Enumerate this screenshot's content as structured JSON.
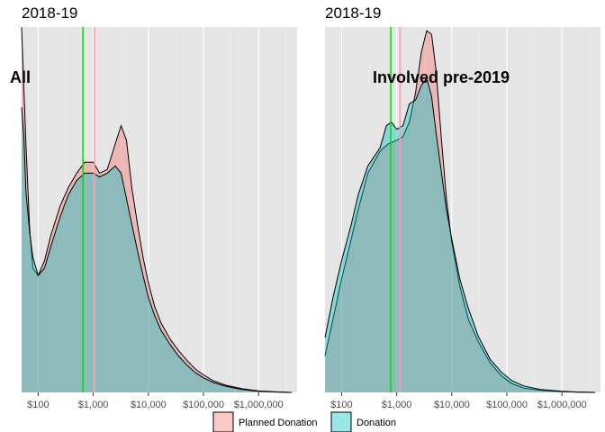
{
  "chart_data": [
    {
      "type": "area",
      "title": "2018-19",
      "annotation": "All",
      "xscale": "log10",
      "xlim": [
        50,
        5000000
      ],
      "ylim": [
        0,
        1
      ],
      "x_ticks": [
        100,
        1000,
        10000,
        100000,
        1000000
      ],
      "x_tick_labels": [
        "$100",
        "$1,000",
        "$10,000",
        "$100,000",
        "$1,000,000"
      ],
      "vlines": [
        {
          "series": "Donation",
          "x": 650,
          "color": "#00e000"
        },
        {
          "series": "Planned Donation",
          "x": 1050,
          "color": "#ff9db0"
        }
      ],
      "series": [
        {
          "name": "Planned Donation",
          "color": "#f8766d",
          "x": [
            50,
            60,
            70,
            80,
            100,
            130,
            170,
            250,
            350,
            500,
            700,
            1000,
            1300,
            1800,
            2500,
            3200,
            4000,
            5000,
            6500,
            8000,
            10000,
            13000,
            17000,
            25000,
            35000,
            50000,
            70000,
            100000,
            150000,
            250000,
            500000,
            1000000,
            2000000,
            4000000
          ],
          "y": [
            1.0,
            0.68,
            0.45,
            0.34,
            0.32,
            0.36,
            0.43,
            0.51,
            0.56,
            0.6,
            0.63,
            0.63,
            0.6,
            0.61,
            0.68,
            0.73,
            0.69,
            0.56,
            0.45,
            0.37,
            0.3,
            0.235,
            0.19,
            0.145,
            0.115,
            0.088,
            0.065,
            0.048,
            0.032,
            0.02,
            0.01,
            0.004,
            0.0015,
            0.0
          ]
        },
        {
          "name": "Donation",
          "color": "#00bfc4",
          "x": [
            50,
            55,
            60,
            70,
            80,
            100,
            130,
            170,
            250,
            350,
            500,
            700,
            1000,
            1300,
            1800,
            2500,
            3200,
            4000,
            5000,
            6500,
            8000,
            10000,
            13000,
            17000,
            25000,
            35000,
            50000,
            70000,
            100000,
            150000,
            250000,
            500000,
            1000000,
            2000000,
            4000000
          ],
          "y": [
            0.78,
            0.7,
            0.55,
            0.44,
            0.37,
            0.32,
            0.34,
            0.4,
            0.48,
            0.54,
            0.58,
            0.6,
            0.6,
            0.59,
            0.6,
            0.62,
            0.6,
            0.53,
            0.46,
            0.38,
            0.32,
            0.26,
            0.21,
            0.17,
            0.13,
            0.1,
            0.075,
            0.055,
            0.04,
            0.027,
            0.017,
            0.008,
            0.003,
            0.001,
            0.0
          ]
        }
      ]
    },
    {
      "type": "area",
      "title": "2018-19",
      "annotation": "Involved pre-2019",
      "xscale": "log10",
      "xlim": [
        50,
        5000000
      ],
      "ylim": [
        0,
        1
      ],
      "x_ticks": [
        100,
        1000,
        10000,
        100000,
        1000000
      ],
      "x_tick_labels": [
        "$100",
        "$1,000",
        "$10,000",
        "$100,000",
        "$1,000,000"
      ],
      "vlines": [
        {
          "series": "Donation",
          "x": 780,
          "color": "#00e000"
        },
        {
          "series": "Planned Donation",
          "x": 1150,
          "color": "#ff9db0"
        }
      ],
      "series": [
        {
          "name": "Planned Donation",
          "color": "#f8766d",
          "x": [
            50,
            70,
            100,
            150,
            200,
            300,
            500,
            700,
            1000,
            1300,
            1700,
            2200,
            2800,
            3500,
            4300,
            5200,
            6500,
            8000,
            10000,
            14000,
            20000,
            30000,
            50000,
            80000,
            120000,
            200000,
            400000,
            1000000,
            2000000,
            4000000
          ],
          "y": [
            0.1,
            0.2,
            0.31,
            0.42,
            0.5,
            0.6,
            0.66,
            0.68,
            0.69,
            0.7,
            0.74,
            0.82,
            0.93,
            0.99,
            0.98,
            0.88,
            0.69,
            0.53,
            0.41,
            0.29,
            0.2,
            0.14,
            0.08,
            0.045,
            0.025,
            0.012,
            0.006,
            0.002,
            0.0005,
            0.0
          ]
        },
        {
          "name": "Donation",
          "color": "#00bfc4",
          "x": [
            50,
            70,
            100,
            150,
            200,
            300,
            500,
            650,
            800,
            1000,
            1300,
            1700,
            2200,
            2800,
            3500,
            4300,
            5200,
            6500,
            8000,
            10000,
            14000,
            20000,
            30000,
            50000,
            80000,
            120000,
            200000,
            400000,
            1000000,
            2000000,
            4000000
          ],
          "y": [
            0.15,
            0.26,
            0.36,
            0.46,
            0.54,
            0.62,
            0.67,
            0.73,
            0.74,
            0.72,
            0.73,
            0.79,
            0.8,
            0.84,
            0.86,
            0.81,
            0.71,
            0.6,
            0.5,
            0.42,
            0.31,
            0.23,
            0.155,
            0.09,
            0.055,
            0.033,
            0.018,
            0.008,
            0.003,
            0.001,
            0.0
          ]
        }
      ]
    }
  ],
  "legend": {
    "items": [
      {
        "label": "Planned Donation",
        "color": "#f8766d"
      },
      {
        "label": "Donation",
        "color": "#00bfc4"
      }
    ],
    "position": "bottom"
  }
}
